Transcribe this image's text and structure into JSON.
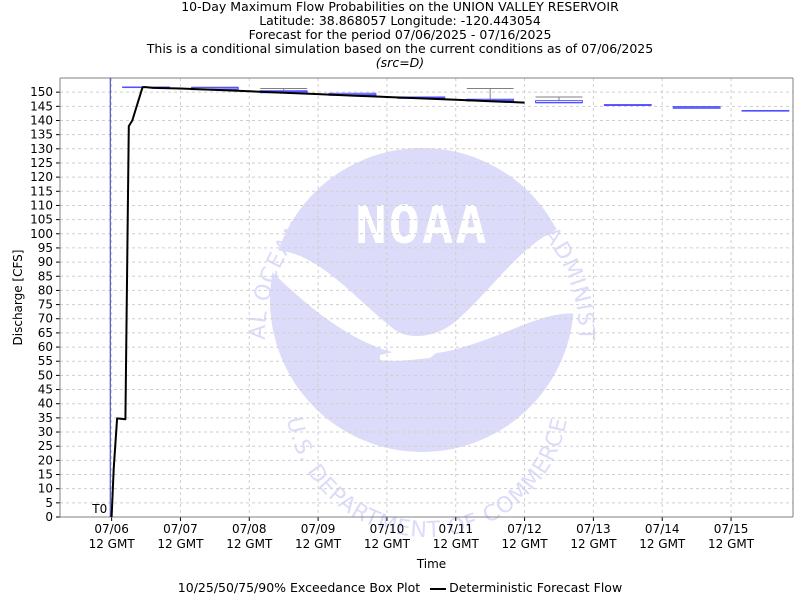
{
  "titles": {
    "line1": "10-Day Maximum Flow Probabilities on the UNION VALLEY RESERVOIR",
    "line2": "Latitude: 38.868057 Longitude: -120.443054",
    "line3": "Forecast for the period 07/06/2025 - 07/16/2025",
    "line4": "This is a conditional simulation based on the current conditions as of 07/06/2025",
    "line5": "(src=D)"
  },
  "watermark": {
    "text_top": "NATIONAL OCEANIC AND ATMOSPHERIC ADMINISTRATION",
    "text_bottom": "U.S. DEPARTMENT OF COMMERCE",
    "logo": "NOAA"
  },
  "colors": {
    "box": "#5050ff",
    "whisker": "#808080",
    "deterministic": "#000000",
    "t0_line": "#3030c0",
    "grid": "#cfcfcf",
    "watermark": "#dcdcfa"
  },
  "chart_data": {
    "type": "box+line",
    "ylabel": "Discharge [CFS]",
    "xlabel": "Time",
    "ylim": [
      0,
      155
    ],
    "yticks": [
      0,
      5,
      10,
      15,
      20,
      25,
      30,
      35,
      40,
      45,
      50,
      55,
      60,
      65,
      70,
      75,
      80,
      85,
      90,
      95,
      100,
      105,
      110,
      115,
      120,
      125,
      130,
      135,
      140,
      145,
      150
    ],
    "xlim_days": [
      -0.75,
      9.9
    ],
    "xticks": [
      {
        "day": 0,
        "line1": "07/06",
        "line2": "12 GMT"
      },
      {
        "day": 1,
        "line1": "07/07",
        "line2": "12 GMT"
      },
      {
        "day": 2,
        "line1": "07/08",
        "line2": "12 GMT"
      },
      {
        "day": 3,
        "line1": "07/09",
        "line2": "12 GMT"
      },
      {
        "day": 4,
        "line1": "07/10",
        "line2": "12 GMT"
      },
      {
        "day": 5,
        "line1": "07/11",
        "line2": "12 GMT"
      },
      {
        "day": 6,
        "line1": "07/12",
        "line2": "12 GMT"
      },
      {
        "day": 7,
        "line1": "07/13",
        "line2": "12 GMT"
      },
      {
        "day": 8,
        "line1": "07/14",
        "line2": "12 GMT"
      },
      {
        "day": 9,
        "line1": "07/15",
        "line2": "12 GMT"
      }
    ],
    "t0_label": "T0",
    "t0_day": -0.02,
    "boxes": [
      {
        "day": 0.5,
        "p10": 151.8,
        "p25": 151.8,
        "p50": 151.8,
        "p75": 151.8,
        "p90": 151.8
      },
      {
        "day": 1.5,
        "p10": 150.9,
        "p25": 150.9,
        "p50": 151.1,
        "p75": 151.6,
        "p90": 151.8
      },
      {
        "day": 2.5,
        "p10": 149.8,
        "p25": 149.8,
        "p50": 150.2,
        "p75": 150.5,
        "p90": 151.3
      },
      {
        "day": 3.5,
        "p10": 148.9,
        "p25": 148.9,
        "p50": 149.1,
        "p75": 149.6,
        "p90": 149.6
      },
      {
        "day": 4.5,
        "p10": 147.8,
        "p25": 147.8,
        "p50": 148.1,
        "p75": 148.3,
        "p90": 148.3
      },
      {
        "day": 5.5,
        "p10": 146.9,
        "p25": 146.9,
        "p50": 147.1,
        "p75": 147.5,
        "p90": 151.3
      },
      {
        "day": 6.5,
        "p10": 146.3,
        "p25": 146.3,
        "p50": 146.3,
        "p75": 147.0,
        "p90": 148.3
      },
      {
        "day": 7.5,
        "p10": 145.3,
        "p25": 145.3,
        "p50": 145.5,
        "p75": 145.6,
        "p90": 145.6
      },
      {
        "day": 8.5,
        "p10": 144.3,
        "p25": 144.3,
        "p50": 144.5,
        "p75": 144.9,
        "p90": 144.9
      },
      {
        "day": 9.5,
        "p10": 143.3,
        "p25": 143.3,
        "p50": 143.5,
        "p75": 143.5,
        "p90": 143.5
      }
    ],
    "series": [
      {
        "name": "Deterministic Forecast Flow",
        "x": [
          0.0,
          0.03,
          0.08,
          0.2,
          0.25,
          0.3,
          0.45,
          0.5,
          0.6,
          1.0,
          1.5,
          2.0,
          2.5,
          3.0,
          3.5,
          4.0,
          4.5,
          5.0,
          5.5,
          6.0
        ],
        "y": [
          0,
          17,
          34.8,
          34.5,
          138,
          140,
          151.8,
          151.8,
          151.5,
          151.3,
          150.8,
          150.3,
          149.8,
          149.3,
          148.8,
          148.3,
          147.8,
          147.3,
          146.8,
          146.3
        ]
      }
    ],
    "legend": {
      "box_label": "10/25/50/75/90% Exceedance Box Plot",
      "line_label": "Deterministic Forecast Flow",
      "placement": "bottom"
    },
    "grid": true
  }
}
